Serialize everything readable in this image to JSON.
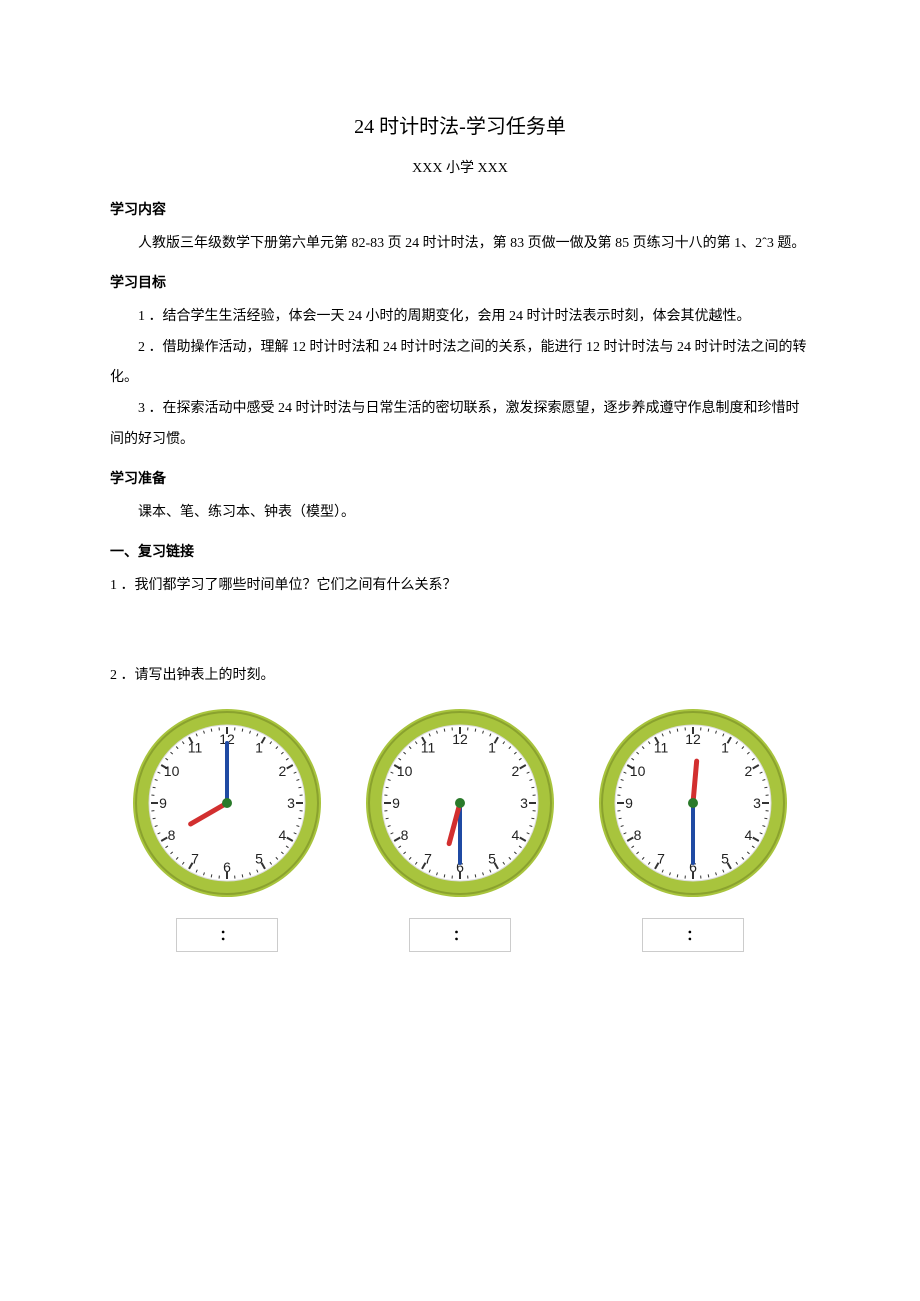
{
  "title": "24 时计时法-学习任务单",
  "subtitle": "XXX 小学 XXX",
  "sections": {
    "content_head": "学习内容",
    "content_body": "人教版三年级数学下册第六单元第 82-83 页 24 时计时法，第 83 页做一做及第 85 页练习十八的第 1、2ˆ3 题。",
    "goal_head": "学习目标",
    "goal_1": "1 ．结合学生生活经验，体会一天 24 小时的周期变化，会用 24 时计时法表示时刻，体会其优越性。",
    "goal_2": "2 ．借助操作活动，理解 12 时计时法和 24 时计时法之间的关系，能进行 12 时计时法与 24 时计时法之间的转化。",
    "goal_3": "3 ．在探索活动中感受 24 时计时法与日常生活的密切联系，激发探索愿望，逐步养成遵守作息制度和珍惜时间的好习惯。",
    "prep_head": "学习准备",
    "prep_body": "课本、笔、练习本、钟表（模型）。",
    "review_head": "一、复习链接",
    "q1": "1 ．我们都学习了哪些时间单位？它们之间有什么关系？",
    "q2": "2 ．请写出钟表上的时刻。"
  },
  "clock_style": {
    "rim_outer_d": 190,
    "rim_color": "#a8c43d",
    "face_color": "#ffffff",
    "tick_color": "#333333",
    "num_color": "#222222",
    "num_fontsize": 14,
    "hour_hand_color": "#d22f2f",
    "minute_hand_color": "#1f4aa3",
    "center_dot_color": "#2a7a2a",
    "rim_width": 14,
    "face_radius": 78,
    "num_radius": 64,
    "hour_hand_len": 42,
    "minute_hand_len": 60,
    "hour_hand_width": 5,
    "minute_hand_width": 4
  },
  "clocks": [
    {
      "hour_angle": 240,
      "minute_angle": 0
    },
    {
      "hour_angle": 195,
      "minute_angle": 180
    },
    {
      "hour_angle": 5,
      "minute_angle": 180
    }
  ],
  "answer_box": {
    "colon": "："
  }
}
